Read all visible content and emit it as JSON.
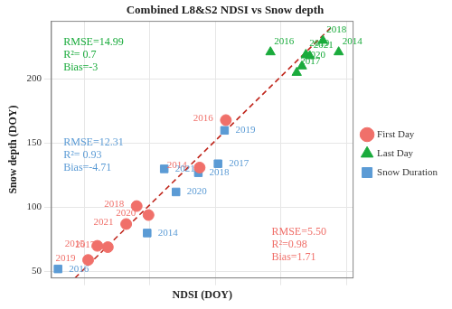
{
  "chart_data": {
    "type": "scatter",
    "title": "Combined L8&S2 NDSI vs Snow depth",
    "x_label": "NDSI (DOY)",
    "y_label": "Snow depth (DOY)",
    "xlim": [
      25,
      255
    ],
    "xticks": [
      50,
      100,
      150,
      200,
      250
    ],
    "ylim": [
      45,
      245
    ],
    "yticks": [
      50,
      100,
      150,
      200
    ],
    "grid": true,
    "legend": "right",
    "tick_labels": "y",
    "series": [
      {
        "name": "First Day",
        "color": "#f0706a",
        "marker": "circle",
        "labels": [
          "2019",
          "2015",
          "2017",
          "2021",
          "2018",
          "2020",
          "2014",
          "2016"
        ],
        "x": [
          53,
          60,
          68,
          82,
          90,
          99,
          138,
          158
        ],
        "values": [
          59,
          70,
          69,
          87,
          101,
          94,
          131,
          168
        ]
      },
      {
        "name": "Last Day",
        "color": "#1aab3c",
        "marker": "triangle",
        "labels": [
          "2016",
          "2017",
          "2020",
          "2019",
          "2021",
          "2018",
          "2014"
        ],
        "x": [
          192,
          212,
          216,
          219,
          222,
          232,
          244
        ],
        "values": [
          221,
          205,
          210,
          219,
          218,
          230,
          221
        ]
      },
      {
        "name": "Snow Duration",
        "color": "#5b9bd5",
        "marker": "square",
        "labels": [
          "2016",
          "2014",
          "2020",
          "2021",
          "2018",
          "2017",
          "2019"
        ],
        "x": [
          30,
          98,
          120,
          111,
          137,
          152,
          157
        ],
        "values": [
          52,
          80,
          112,
          130,
          127,
          134,
          160
        ]
      }
    ],
    "trend_line": {
      "color": "#c0281e",
      "line_style": "dashed",
      "x": [
        38,
        240
      ],
      "values": [
        40,
        242
      ]
    },
    "annotations": [
      {
        "color": "#1aab3c",
        "lines": [
          "RMSE=14.99",
          "R²= 0.7",
          "Bias=-3"
        ]
      },
      {
        "color": "#5b9bd5",
        "lines": [
          "RMSE=12.31",
          "R²= 0.93",
          "Bias=-4.71"
        ]
      },
      {
        "color": "#f0706a",
        "lines": [
          "RMSE=5.50",
          "R²=0.98",
          "Bias=1.71"
        ]
      }
    ]
  }
}
